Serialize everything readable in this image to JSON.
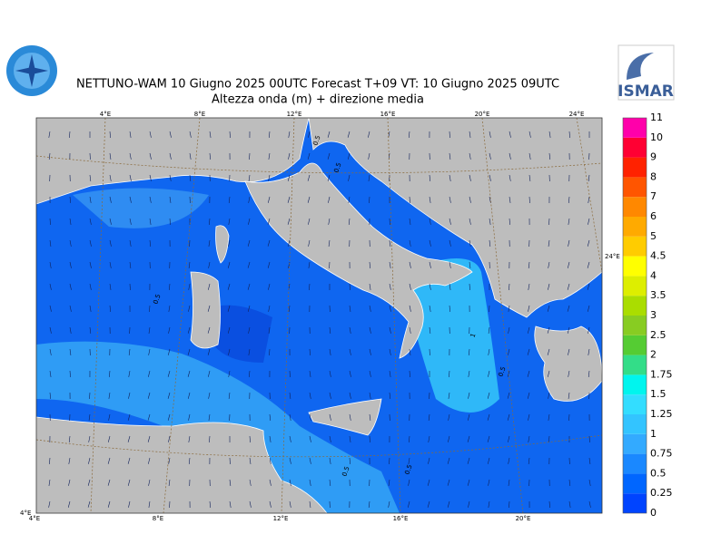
{
  "header": {
    "title": "NETTUNO-WAM  10   Giugno  2025 00UTC Forecast T+09 VT: 10   Giugno  2025 09UTC",
    "subtitle": "Altezza onda (m) + direzione media"
  },
  "logo": {
    "text": "ISMAR"
  },
  "map": {
    "lon_labels_top": [
      "4°E",
      "8°E",
      "12°E",
      "16°E",
      "20°E",
      "24°E"
    ],
    "lon_labels_bottom": [
      "4°E",
      "8°E",
      "12°E",
      "16°E",
      "20°E"
    ],
    "right_label": "24°E",
    "left_label": "4°E",
    "contour_labels": [
      "0.5",
      "0.5",
      "0.5",
      "0.5",
      "0.5",
      "0.5",
      "1"
    ]
  },
  "colorbar": {
    "labels": [
      "0",
      "0.25",
      "0.5",
      "0.75",
      "1",
      "1.25",
      "1.5",
      "1.75",
      "2",
      "2.5",
      "3",
      "3.5",
      "4",
      "4.5",
      "5",
      "6",
      "7",
      "8",
      "9",
      "10",
      "11"
    ],
    "colors": [
      "#0044ff",
      "#0066ff",
      "#1a88ff",
      "#33aaff",
      "#33c4ff",
      "#33ddff",
      "#00f5ee",
      "#33dd88",
      "#55cc33",
      "#88cc22",
      "#aadd00",
      "#ddee00",
      "#ffff00",
      "#ffcc00",
      "#ffaa00",
      "#ff8800",
      "#ff5500",
      "#ff2200",
      "#ff0033",
      "#ff00aa"
    ]
  }
}
